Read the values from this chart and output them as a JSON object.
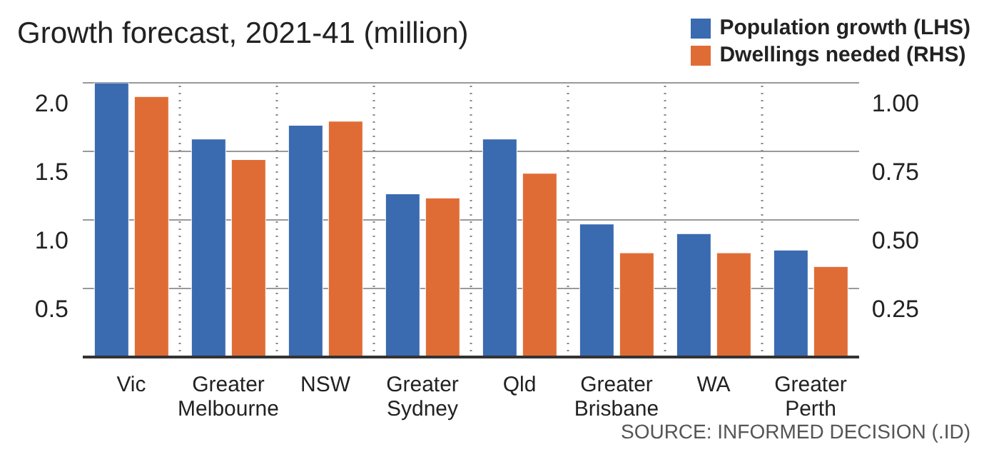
{
  "chart_data": {
    "type": "bar",
    "title": "Growth forecast, 2021-41 (million)",
    "categories": [
      "Vic",
      "Greater Melbourne",
      "NSW",
      "Greater Sydney",
      "Qld",
      "Greater Brisbane",
      "WA",
      "Greater Perth"
    ],
    "series": [
      {
        "name": "Population growth (LHS)",
        "color": "#3a6ab0",
        "values": [
          2.0,
          1.59,
          1.69,
          1.19,
          1.59,
          0.97,
          0.9,
          0.78
        ]
      },
      {
        "name": "Dwellings needed (RHS)",
        "color": "#e06c35",
        "axis": "y2",
        "values": [
          0.95,
          0.72,
          0.86,
          0.58,
          0.67,
          0.38,
          0.38,
          0.33
        ]
      }
    ],
    "ylim": [
      0,
      2.0
    ],
    "yticks": [
      {
        "value": 0,
        "label": null
      },
      0.5,
      {
        "value": 1.0,
        "label": "1.0"
      },
      1.5,
      {
        "value": 2.0,
        "label": "2.0"
      }
    ],
    "y2lim": [
      0,
      1.0
    ],
    "y2ticks": [
      {
        "value": 0,
        "label": null
      },
      0.25,
      {
        "value": 0.5,
        "label": "0.50"
      },
      0.75,
      {
        "value": 1.0,
        "label": "1.00"
      }
    ],
    "grid": "y",
    "legend": "top right",
    "annotations": [
      "SOURCE: INFORMED DECISION (.ID)"
    ]
  }
}
